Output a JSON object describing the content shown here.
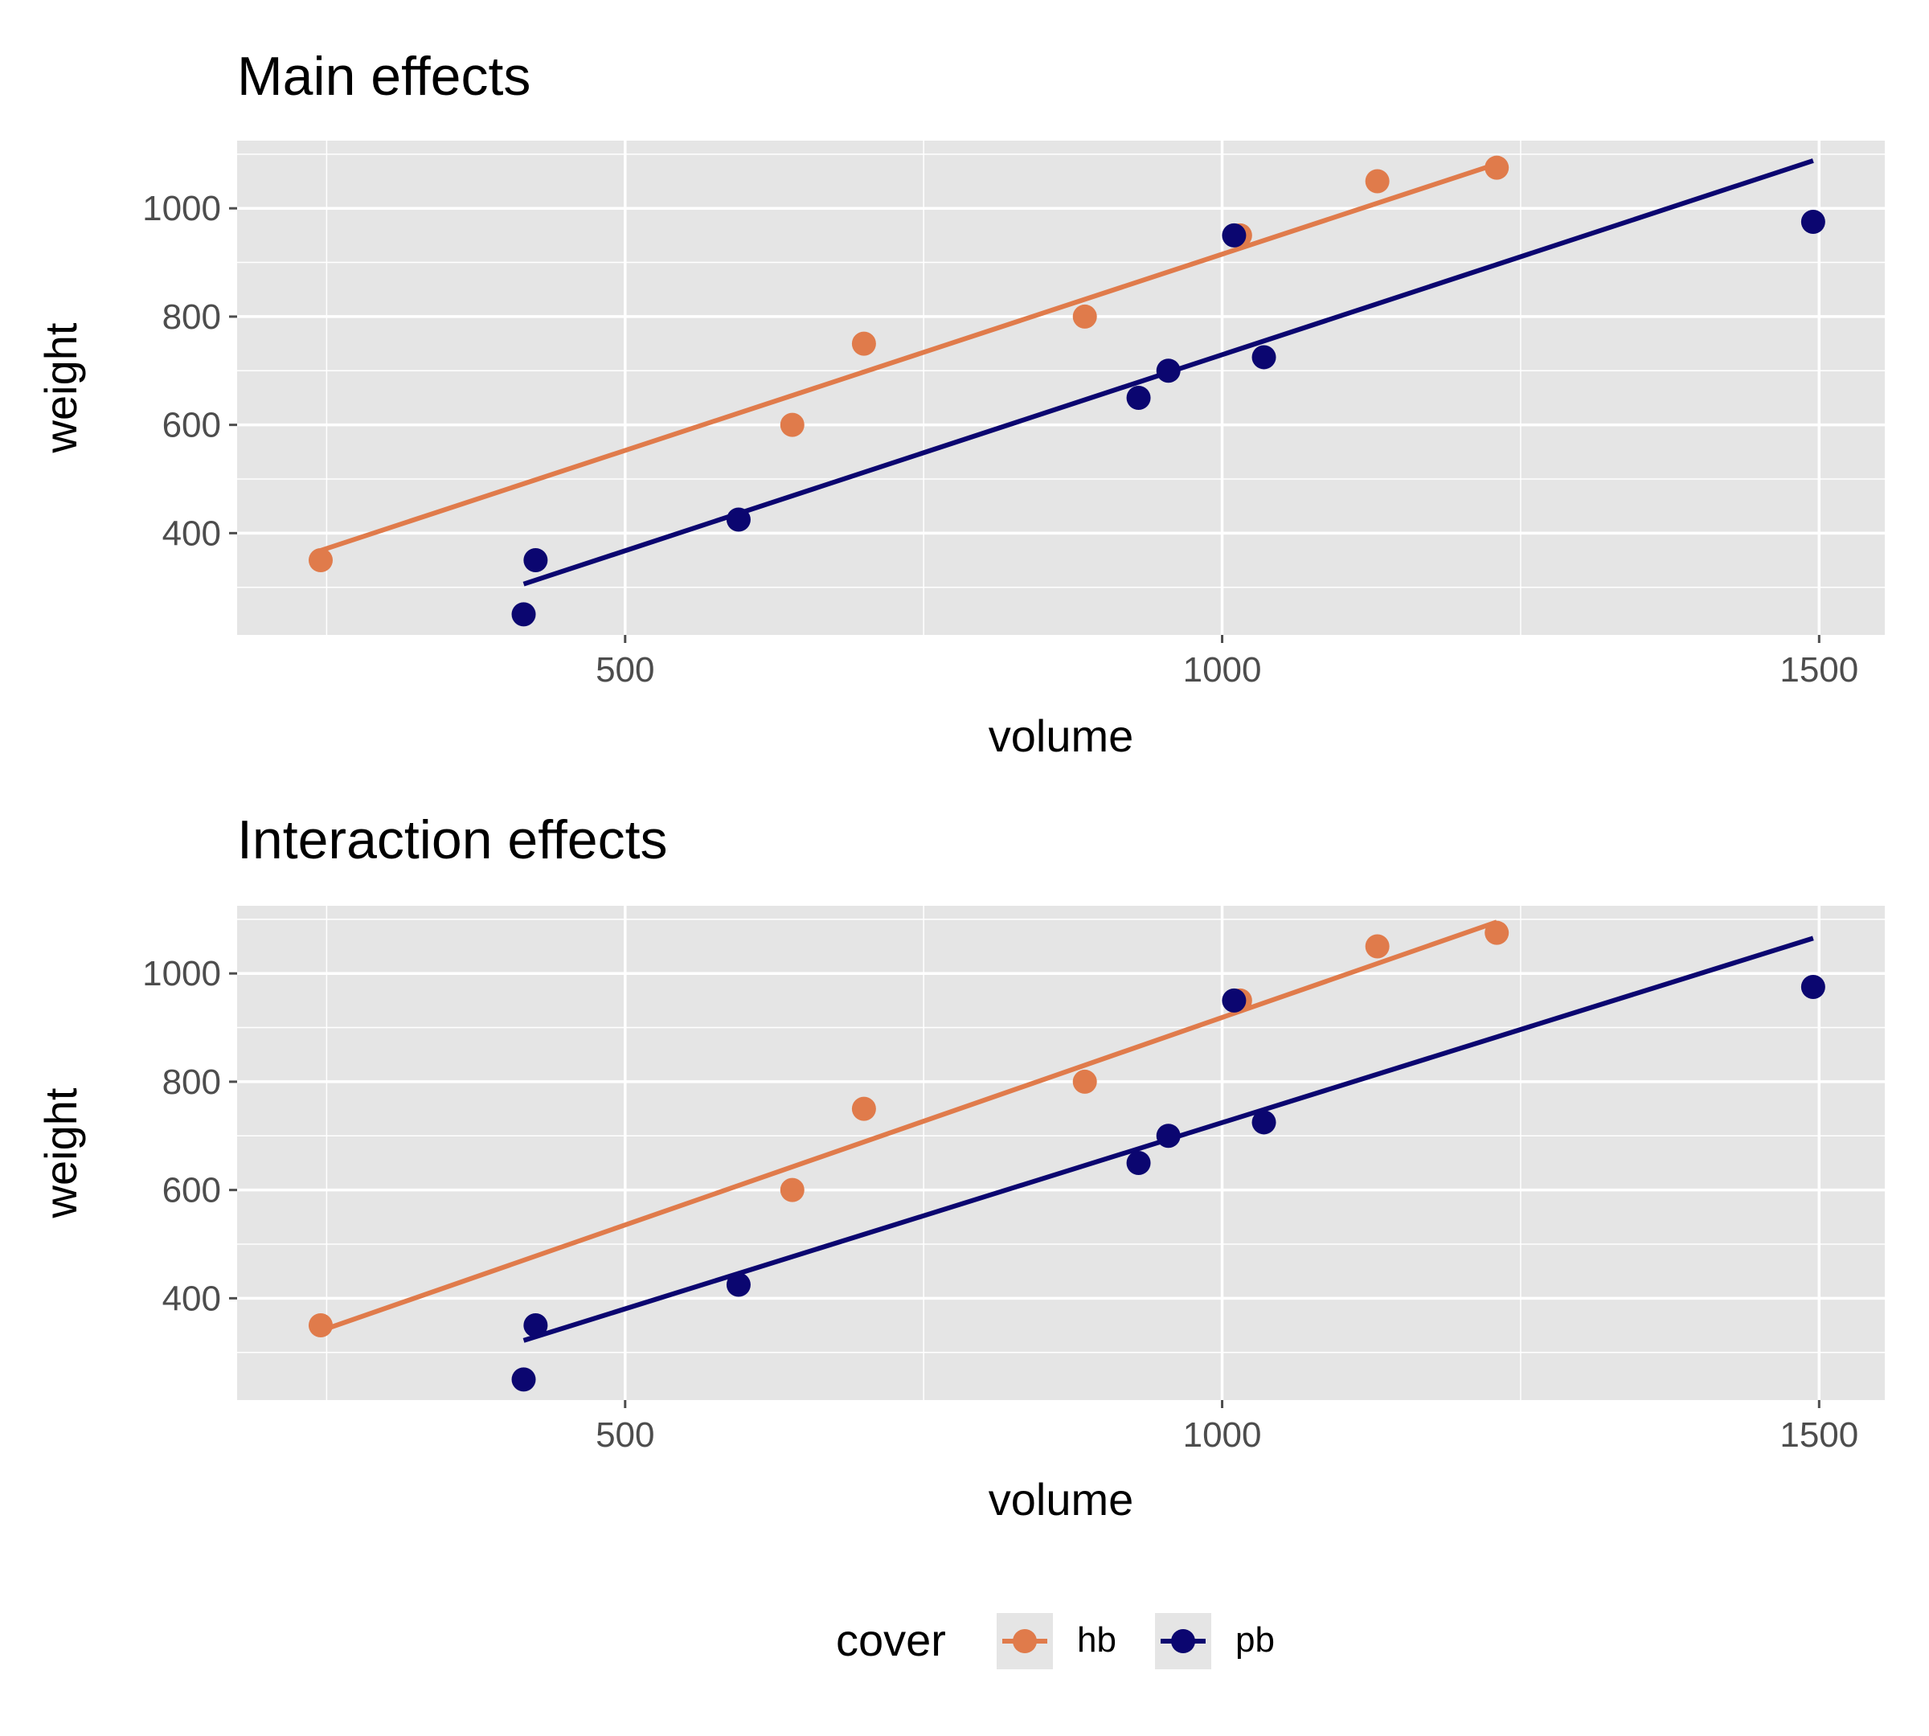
{
  "colors": {
    "hb": "#E07B4B",
    "pb": "#0B0670",
    "panel_bg": "#E5E5E5",
    "grid": "#FFFFFF",
    "tick": "#4D4D4D"
  },
  "legend": {
    "title": "cover",
    "items": [
      {
        "key": "hb",
        "label": "hb"
      },
      {
        "key": "pb",
        "label": "pb"
      }
    ]
  },
  "chart_data": [
    {
      "type": "scatter",
      "title": "Main effects",
      "xlabel": "volume",
      "ylabel": "weight",
      "xlim": [
        175,
        1555
      ],
      "ylim": [
        212,
        1125
      ],
      "x_ticks": [
        500,
        1000,
        1500
      ],
      "x_tick_labels": [
        "500",
        "1000",
        "1500"
      ],
      "y_ticks": [
        400,
        600,
        800,
        1000
      ],
      "y_tick_labels": [
        "400",
        "600",
        "800",
        "1000"
      ],
      "grid": true,
      "legend_position": "bottom",
      "series": [
        {
          "key": "hb",
          "name": "hb",
          "points": [
            [
              245,
              350
            ],
            [
              640,
              600
            ],
            [
              700,
              750
            ],
            [
              885,
              800
            ],
            [
              1015,
              950
            ],
            [
              1130,
              1050
            ],
            [
              1230,
              1075
            ]
          ],
          "fit": [
            [
              245,
              368
            ],
            [
              1230,
              1082
            ]
          ]
        },
        {
          "key": "pb",
          "name": "pb",
          "points": [
            [
              415,
              250
            ],
            [
              425,
              350
            ],
            [
              595,
              425
            ],
            [
              930,
              650
            ],
            [
              955,
              700
            ],
            [
              1010,
              950
            ],
            [
              1035,
              725
            ],
            [
              1495,
              975
            ]
          ],
          "fit": [
            [
              415,
              306
            ],
            [
              1495,
              1088
            ]
          ]
        }
      ]
    },
    {
      "type": "scatter",
      "title": "Interaction effects",
      "xlabel": "volume",
      "ylabel": "weight",
      "xlim": [
        175,
        1555
      ],
      "ylim": [
        212,
        1125
      ],
      "x_ticks": [
        500,
        1000,
        1500
      ],
      "x_tick_labels": [
        "500",
        "1000",
        "1500"
      ],
      "y_ticks": [
        400,
        600,
        800,
        1000
      ],
      "y_tick_labels": [
        "400",
        "600",
        "800",
        "1000"
      ],
      "grid": true,
      "legend_position": "bottom",
      "series": [
        {
          "key": "hb",
          "name": "hb",
          "points": [
            [
              245,
              350
            ],
            [
              640,
              600
            ],
            [
              700,
              750
            ],
            [
              885,
              800
            ],
            [
              1015,
              950
            ],
            [
              1130,
              1050
            ],
            [
              1230,
              1075
            ]
          ],
          "fit": [
            [
              245,
              340
            ],
            [
              1230,
              1095
            ]
          ]
        },
        {
          "key": "pb",
          "name": "pb",
          "points": [
            [
              415,
              250
            ],
            [
              425,
              350
            ],
            [
              595,
              425
            ],
            [
              930,
              650
            ],
            [
              955,
              700
            ],
            [
              1010,
              950
            ],
            [
              1035,
              725
            ],
            [
              1495,
              975
            ]
          ],
          "fit": [
            [
              415,
              322
            ],
            [
              1495,
              1065
            ]
          ]
        }
      ]
    }
  ]
}
